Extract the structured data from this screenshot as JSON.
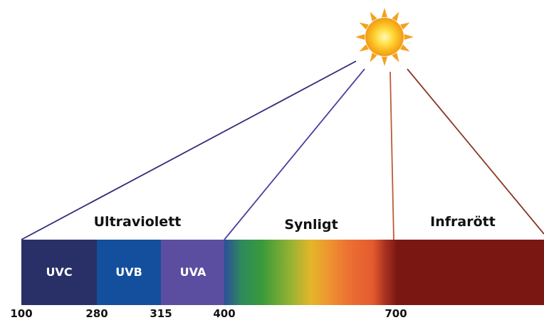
{
  "regions": {
    "ultraviolet": "Ultraviolett",
    "visible": "Synligt",
    "infrared": "Infrarött"
  },
  "bands": {
    "uvc": "UVC",
    "uvb": "UVB",
    "uva": "UVA"
  },
  "ticks": {
    "t100": "100",
    "t280": "280",
    "t315": "315",
    "t400": "400",
    "t700": "700"
  },
  "colors": {
    "uvc": "#283067",
    "uvb": "#134f9c",
    "uva": "#5b4ea0",
    "infrared": "#7a1712",
    "ray_uv": "#2f2a7a",
    "ray_visible": "#4f3c9c",
    "ray_ir_near": "#c0583a",
    "ray_ir_far": "#8a3524",
    "sun_ray": "#f2a21b",
    "sun_core": "#f7b21a"
  },
  "icons": {
    "sun": "sun-icon"
  }
}
